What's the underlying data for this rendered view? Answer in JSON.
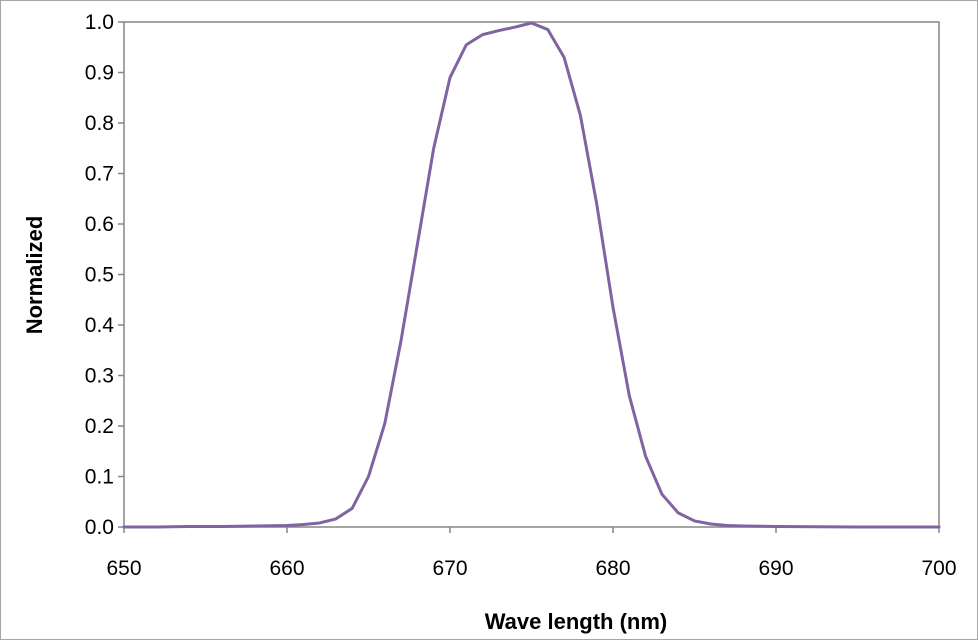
{
  "chart_data": {
    "type": "line",
    "xlabel": "Wave length (nm)",
    "ylabel": "Normalized",
    "xlim": [
      650,
      700
    ],
    "ylim": [
      0,
      1.0
    ],
    "x_ticks": [
      "650",
      "660",
      "670",
      "680",
      "690",
      "700"
    ],
    "y_ticks": [
      "0.0",
      "0.1",
      "0.2",
      "0.3",
      "0.4",
      "0.5",
      "0.6",
      "0.7",
      "0.8",
      "0.9",
      "1.0"
    ],
    "grid": false,
    "legend": "none",
    "line_color": "#8064a2",
    "series": [
      {
        "x": [
          650,
          652,
          654,
          656,
          658,
          660,
          661,
          662,
          663,
          664,
          665,
          666,
          667,
          668,
          669,
          670,
          671,
          672,
          673,
          674,
          675,
          676,
          677,
          678,
          679,
          680,
          681,
          682,
          683,
          684,
          685,
          686,
          687,
          688,
          690,
          695,
          700
        ],
        "y": [
          0.0,
          0.0,
          0.001,
          0.001,
          0.002,
          0.003,
          0.005,
          0.008,
          0.016,
          0.037,
          0.1,
          0.205,
          0.37,
          0.56,
          0.75,
          0.89,
          0.955,
          0.975,
          0.983,
          0.99,
          0.998,
          0.985,
          0.93,
          0.815,
          0.64,
          0.435,
          0.26,
          0.14,
          0.065,
          0.028,
          0.012,
          0.006,
          0.003,
          0.002,
          0.001,
          0.0,
          0.0
        ]
      }
    ]
  }
}
